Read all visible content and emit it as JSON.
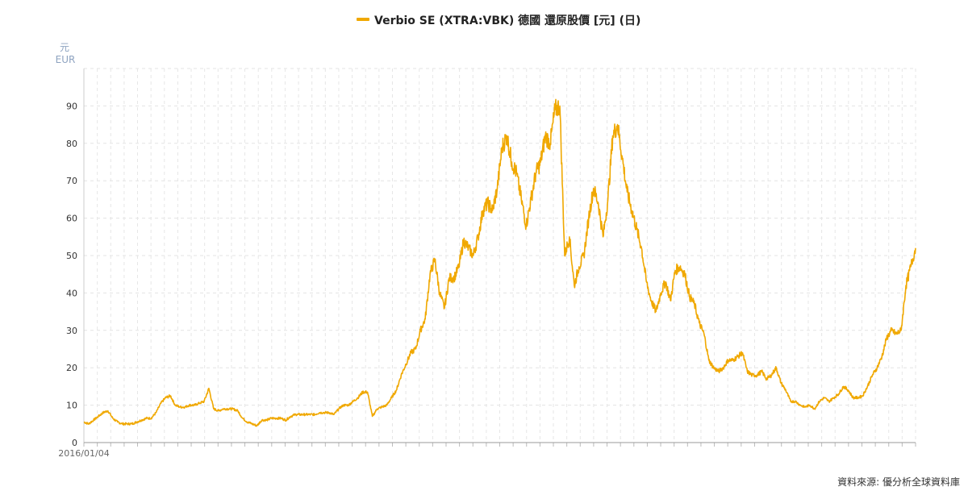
{
  "legend": {
    "label": "Verbio SE (XTRA:VBK) 德國 還原股價 [元] (日)",
    "color": "#f0a800"
  },
  "y_unit": {
    "line1": "元",
    "line2": "EUR"
  },
  "source": "資料來源: 優分析全球資料庫",
  "chart_data": {
    "type": "line",
    "title": "",
    "xlabel": "",
    "ylabel": "",
    "ylim": [
      0,
      100
    ],
    "y_ticks": [
      0,
      10,
      20,
      30,
      40,
      50,
      60,
      70,
      80,
      90
    ],
    "x_tick_label": "2016/01/04",
    "grid": true,
    "series": [
      {
        "name": "Verbio SE (XTRA:VBK) 德國 還原股價 [元] (日)",
        "x_range": [
          "2016/01/04",
          "end"
        ],
        "values": [
          5.5,
          5.0,
          6.0,
          7.0,
          8.0,
          8.5,
          6.5,
          5.5,
          5.0,
          5.0,
          5.0,
          5.5,
          6.0,
          6.5,
          6.5,
          8.0,
          10.5,
          12.0,
          12.5,
          10.0,
          9.5,
          9.5,
          10.0,
          10.0,
          10.5,
          11.0,
          14.5,
          9.0,
          8.5,
          9.0,
          9.0,
          9.0,
          8.5,
          6.5,
          5.5,
          5.0,
          4.5,
          6.0,
          6.0,
          6.5,
          6.5,
          6.5,
          6.0,
          7.0,
          7.5,
          7.5,
          7.5,
          7.5,
          7.5,
          8.0,
          8.0,
          8.0,
          7.5,
          9.0,
          10.0,
          10.0,
          11.0,
          12.0,
          13.5,
          13.5,
          7.0,
          9.0,
          9.5,
          10.0,
          12.0,
          14.0,
          18.0,
          21.0,
          24.0,
          25.0,
          30.0,
          33.0,
          45.0,
          49.0,
          40.0,
          36.0,
          44.0,
          44.0,
          47.0,
          54.0,
          52.0,
          50.0,
          55.0,
          62.0,
          64.0,
          62.0,
          68.0,
          79.0,
          82.0,
          75.0,
          72.0,
          65.0,
          58.0,
          65.0,
          72.0,
          75.0,
          82.0,
          80.0,
          89.0,
          90.0,
          50.0,
          55.0,
          42.0,
          47.0,
          50.0,
          60.0,
          68.0,
          64.0,
          55.0,
          65.0,
          82.0,
          85.0,
          76.0,
          67.0,
          62.0,
          57.0,
          52.0,
          43.0,
          38.0,
          35.0,
          40.0,
          43.0,
          38.0,
          46.0,
          47.0,
          45.0,
          39.0,
          37.0,
          32.0,
          29.0,
          22.0,
          20.0,
          19.0,
          20.0,
          22.0,
          22.0,
          23.0,
          24.0,
          19.0,
          18.0,
          18.0,
          19.0,
          17.0,
          18.0,
          20.0,
          16.0,
          14.0,
          11.0,
          11.0,
          10.0,
          9.5,
          10.0,
          9.0,
          11.0,
          12.0,
          11.0,
          12.0,
          13.0,
          15.0,
          14.0,
          12.0,
          12.0,
          12.5,
          15.0,
          18.0,
          20.0,
          23.0,
          28.0,
          30.0,
          29.0,
          30.0,
          42.0,
          47.0,
          52.0
        ]
      }
    ]
  }
}
